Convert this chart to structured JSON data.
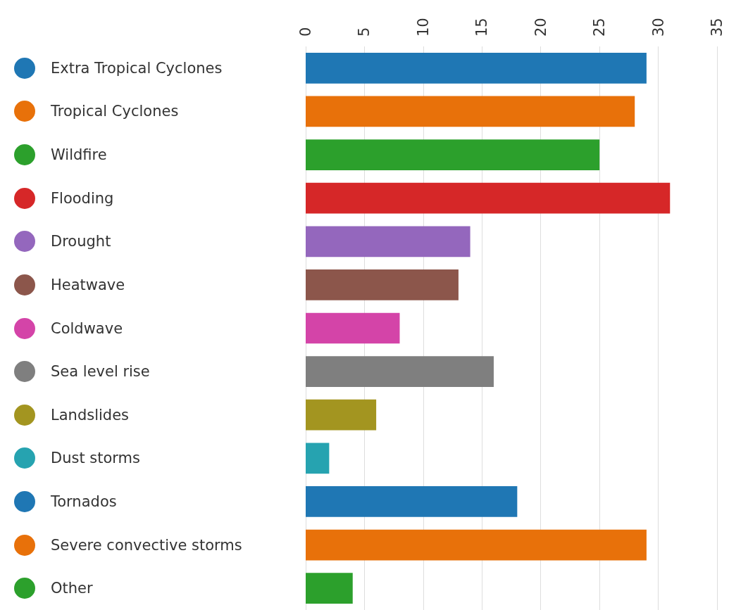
{
  "chart_data": {
    "type": "bar",
    "orientation": "horizontal",
    "categories": [
      "Extra Tropical Cyclones",
      "Tropical Cyclones",
      "Wildfire",
      "Flooding",
      "Drought",
      "Heatwave",
      "Coldwave",
      "Sea level rise",
      "Landslides",
      "Dust storms",
      "Tornados",
      "Severe convective storms",
      "Other"
    ],
    "values": [
      29,
      28,
      25,
      31,
      14,
      13,
      8,
      16,
      6,
      2,
      18,
      29,
      4
    ],
    "colors": [
      "#1f77b4",
      "#e8710a",
      "#2ca02c",
      "#d62728",
      "#9467bd",
      "#8c564b",
      "#d444a8",
      "#7f7f7f",
      "#a39520",
      "#26a3b0",
      "#1f77b4",
      "#e8710a",
      "#2ca02c"
    ],
    "xlim": [
      0,
      35
    ],
    "xticks": [
      0,
      5,
      10,
      15,
      20,
      25,
      30,
      35
    ],
    "grid": "x"
  }
}
